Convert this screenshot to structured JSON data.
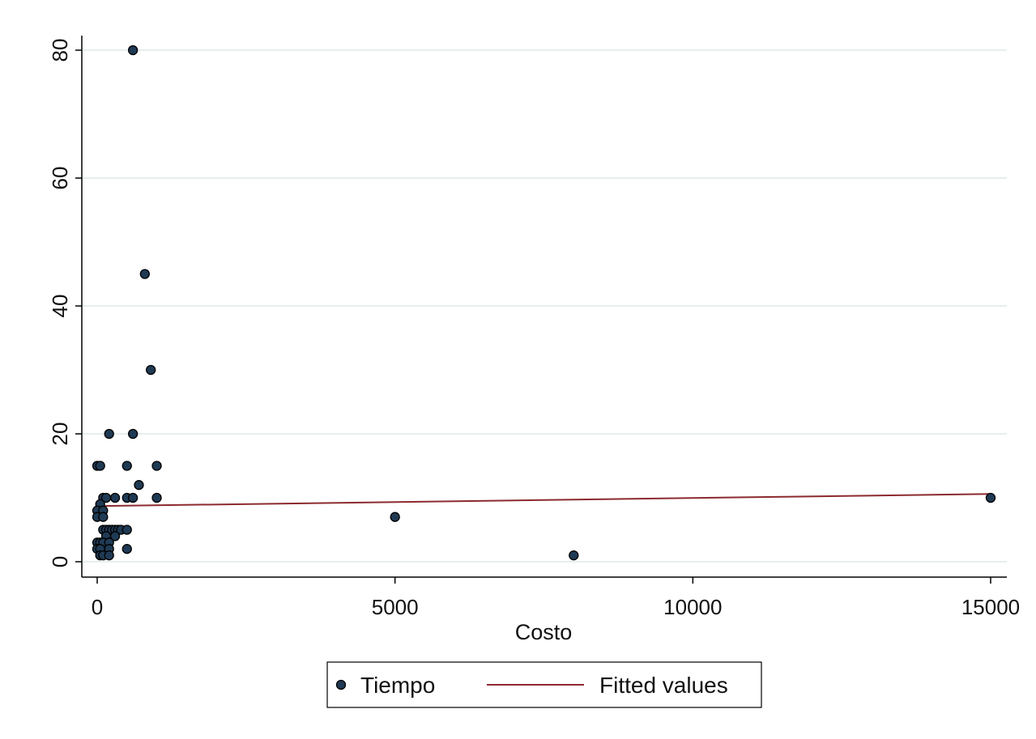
{
  "chart_data": {
    "type": "scatter",
    "title": "",
    "xlabel": "Costo",
    "ylabel": "",
    "xlim": [
      -50,
      15300
    ],
    "ylim": [
      -2.5,
      82.5
    ],
    "x_ticks": [
      0,
      5000,
      10000,
      15000
    ],
    "y_ticks": [
      0,
      20,
      40,
      60,
      80
    ],
    "grid": "horizontal",
    "legend_position": "bottom",
    "colors": {
      "background": "#ffffff",
      "gridline": "#e6efef",
      "marker_fill": "#1f3a54",
      "marker_edge": "#000000",
      "fit_line": "#8c2a2f",
      "axis": "#000000"
    },
    "series": [
      {
        "name": "Tiempo",
        "kind": "scatter",
        "points": [
          [
            600,
            80
          ],
          [
            800,
            45
          ],
          [
            900,
            30
          ],
          [
            200,
            20
          ],
          [
            600,
            20
          ],
          [
            0,
            15
          ],
          [
            50,
            15
          ],
          [
            500,
            15
          ],
          [
            1000,
            15
          ],
          [
            700,
            12
          ],
          [
            100,
            10
          ],
          [
            150,
            10
          ],
          [
            300,
            10
          ],
          [
            500,
            10
          ],
          [
            600,
            10
          ],
          [
            1000,
            10
          ],
          [
            15000,
            10
          ],
          [
            50,
            9
          ],
          [
            0,
            8
          ],
          [
            100,
            8
          ],
          [
            0,
            7
          ],
          [
            100,
            7
          ],
          [
            5000,
            7
          ],
          [
            100,
            5
          ],
          [
            150,
            5
          ],
          [
            200,
            5
          ],
          [
            250,
            5
          ],
          [
            300,
            5
          ],
          [
            350,
            5
          ],
          [
            400,
            5
          ],
          [
            500,
            5
          ],
          [
            150,
            4
          ],
          [
            300,
            4
          ],
          [
            0,
            3
          ],
          [
            50,
            3
          ],
          [
            100,
            3
          ],
          [
            200,
            3
          ],
          [
            0,
            2
          ],
          [
            50,
            2
          ],
          [
            200,
            2
          ],
          [
            500,
            2
          ],
          [
            50,
            1
          ],
          [
            100,
            1
          ],
          [
            200,
            1
          ],
          [
            8000,
            1
          ]
        ]
      },
      {
        "name": "Fitted values",
        "kind": "line",
        "points": [
          [
            0,
            8.7
          ],
          [
            15000,
            10.6
          ]
        ]
      }
    ]
  }
}
